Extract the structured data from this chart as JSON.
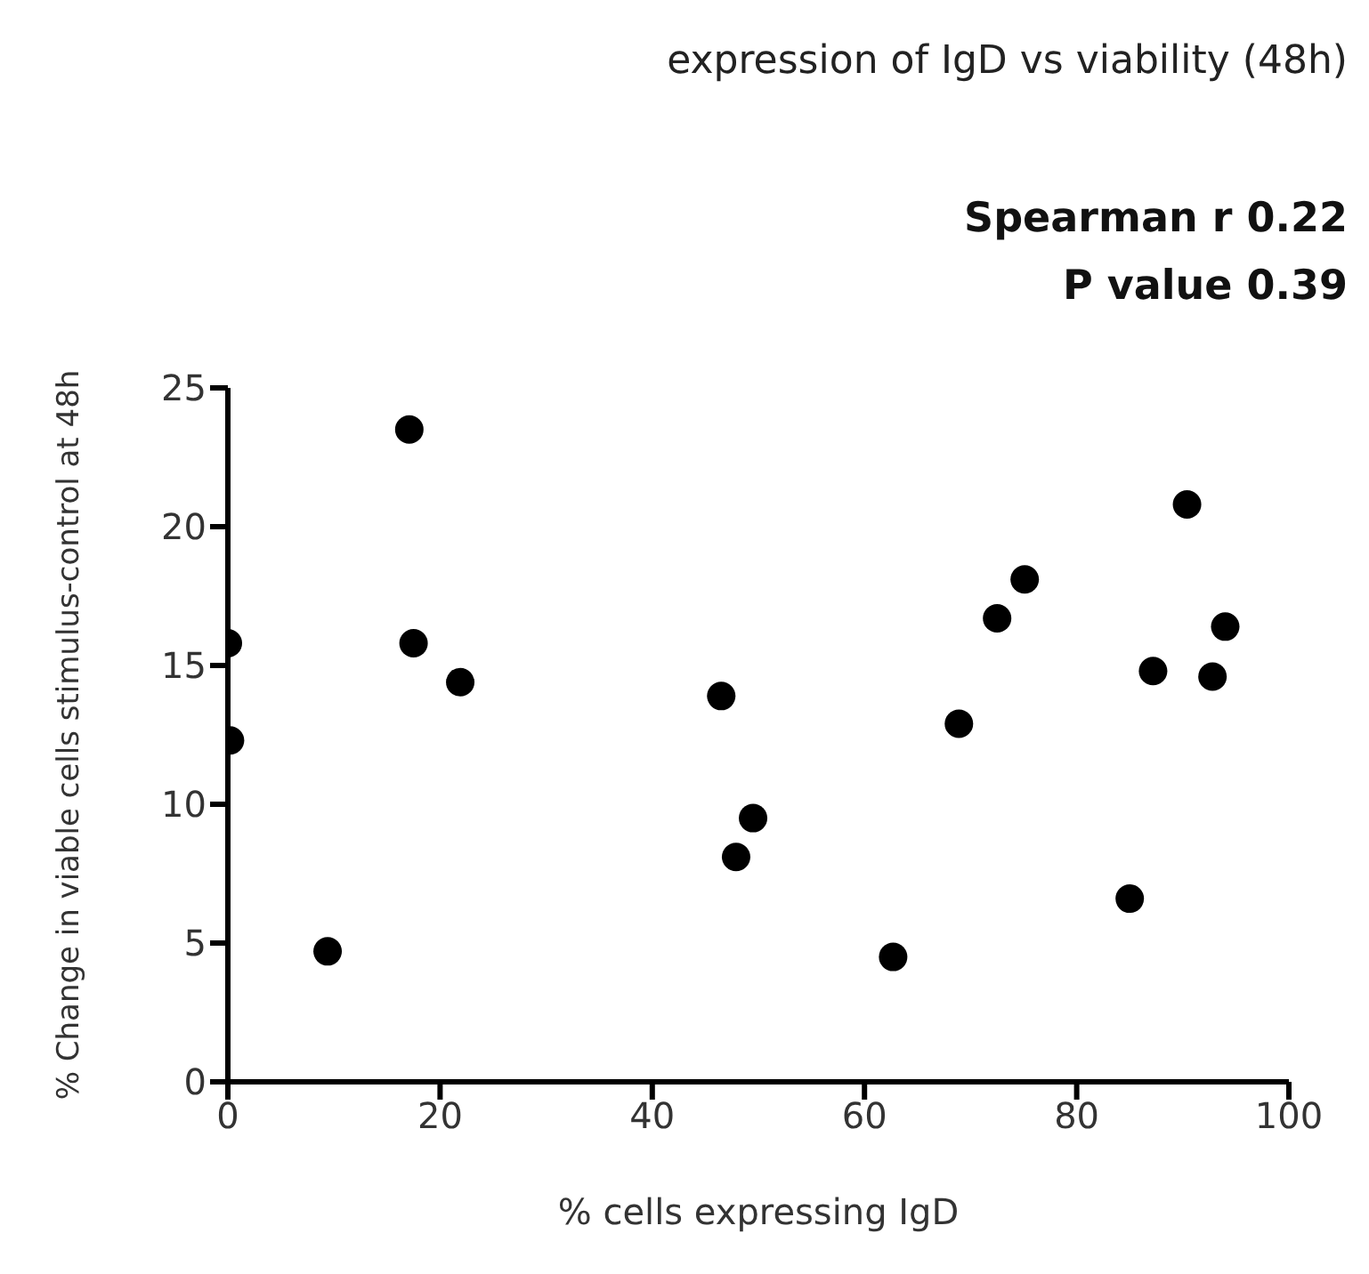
{
  "chart_data": {
    "type": "scatter",
    "title": "expression of IgD vs viability (48h)",
    "annotations": [
      "Spearman r 0.22",
      "P value 0.39"
    ],
    "xlabel": "% cells expressing IgD",
    "ylabel": "% Change in viable cells stimulus-control at 48h",
    "series": [
      {
        "color": "#000000",
        "x": [
          0,
          0.2,
          17.1,
          17.5,
          21.9,
          9.4,
          46.5,
          47.9,
          49.5,
          62.7,
          68.9,
          72.5,
          75.1,
          85.0,
          87.2,
          90.4,
          92.8,
          94.0
        ],
        "values": [
          15.8,
          12.3,
          23.5,
          15.8,
          14.4,
          4.7,
          13.9,
          8.1,
          9.5,
          4.5,
          12.9,
          16.7,
          18.1,
          6.6,
          14.8,
          20.8,
          14.6,
          16.4
        ]
      }
    ],
    "xlim": [
      0,
      100
    ],
    "xticks": [
      0,
      20,
      40,
      60,
      80,
      100
    ],
    "ylim": [
      0,
      25
    ],
    "yticks": [
      0,
      5,
      10,
      15,
      20,
      25
    ],
    "grid": false,
    "legend": false,
    "marker": "circle"
  }
}
